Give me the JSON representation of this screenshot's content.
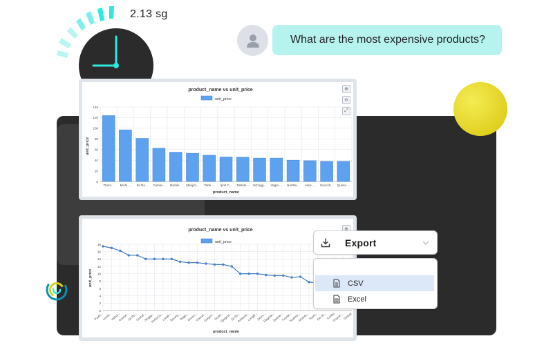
{
  "timer": {
    "text": "2.13 sg"
  },
  "chat": {
    "question": "What are the most expensive products?"
  },
  "export": {
    "button_label": "Export",
    "options": [
      {
        "label": "CSV",
        "selected": true
      },
      {
        "label": "Excel",
        "selected": false
      }
    ]
  },
  "colors": {
    "bar": "#5da1ef",
    "accent": "#b6f3ef",
    "timer_cyan": "#2ee8dc",
    "panel": "#2b2b2b"
  },
  "chart_data": [
    {
      "type": "bar",
      "title": "product_name vs unit_price",
      "xlabel": "product_name",
      "ylabel": "unit_price",
      "legend": "unit_price",
      "legend_position": "top-center",
      "grid": true,
      "ylim": [
        0,
        140
      ],
      "yticks": [
        0,
        20,
        40,
        60,
        80,
        100,
        120,
        140
      ],
      "categories": [
        "Thom...",
        "Mishi ...",
        "Sir Ro...",
        "Carnar...",
        "Raclet...",
        "Manjim...",
        "Tarte ...",
        "Ipoh C...",
        "Rössle...",
        "Schogg...",
        "Vegie-...",
        "Northw...",
        "Alice ...",
        "Gnocch...",
        "Queso ..."
      ],
      "values": [
        123.79,
        97,
        81,
        62.5,
        55,
        53,
        49.3,
        46,
        45.6,
        43.9,
        43.9,
        40,
        39,
        38,
        38
      ]
    },
    {
      "type": "line",
      "title": "product_name vs unit_price",
      "xlabel": "product_name",
      "ylabel": "unit_price",
      "legend": "unit_price",
      "legend_position": "top-center",
      "grid": true,
      "ylim": [
        0,
        18
      ],
      "yticks": [
        0,
        2,
        4,
        6,
        8,
        10,
        12,
        14,
        16,
        18
      ],
      "categories": [
        "Pavlo...",
        "Louisi...",
        "Valkoi...",
        "Guaraí...",
        "Sir Ro...",
        "Gustaf...",
        "Singap...",
        "NuNuCa...",
        "Laugh...",
        "Escarg...",
        "Origin...",
        "Genen...",
        "Chocol...",
        "Gorgon...",
        "Scotti...",
        "Spegesi...",
        "Sir Ro...",
        "Aniseed...",
        "Longlif...",
        "Jack's...",
        "Røgede...",
        "Zaanse...",
        "Tunnbr...",
        "Teatime...",
        "Rhönbr...",
        "Tourti...",
        "Filo M...",
        "Konbu",
        "Guaran...",
        "Geitost"
      ],
      "values": [
        17.45,
        17,
        16.25,
        15,
        15,
        14,
        14,
        14,
        14,
        13.25,
        13,
        13,
        12.75,
        12.5,
        12.5,
        12,
        10,
        10,
        10,
        9.65,
        9.5,
        9.5,
        9,
        9.2,
        7.75,
        7.45,
        7,
        6,
        4.5,
        2.5
      ]
    }
  ]
}
